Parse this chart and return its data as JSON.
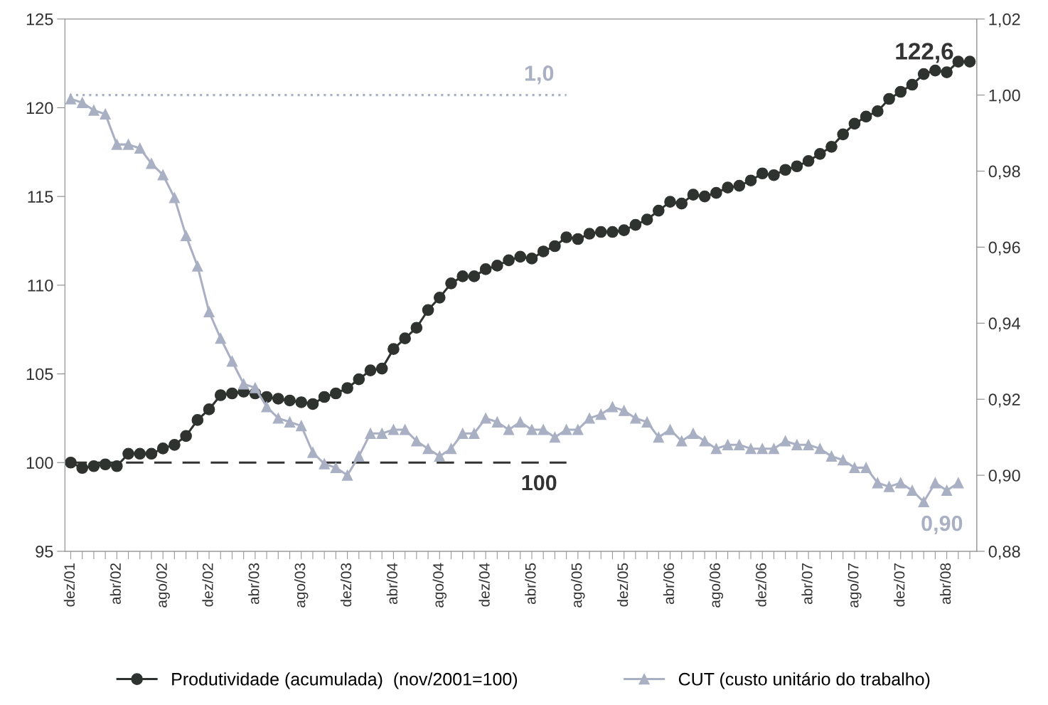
{
  "chart_data": {
    "type": "line",
    "categories": [
      "dez/01",
      null,
      null,
      null,
      "abr/02",
      null,
      null,
      null,
      "ago/02",
      null,
      null,
      null,
      "dez/02",
      null,
      null,
      null,
      "abr/03",
      null,
      null,
      null,
      "ago/03",
      null,
      null,
      null,
      "dez/03",
      null,
      null,
      null,
      "abr/04",
      null,
      null,
      null,
      "ago/04",
      null,
      null,
      null,
      "dez/04",
      null,
      null,
      null,
      "abr/05",
      null,
      null,
      null,
      "ago/05",
      null,
      null,
      null,
      "dez/05",
      null,
      null,
      null,
      "abr/06",
      null,
      null,
      null,
      "ago/06",
      null,
      null,
      null,
      "dez/06",
      null,
      null,
      null,
      "abr/07",
      null,
      null,
      null,
      "ago/07",
      null,
      null,
      null,
      "dez/07",
      null,
      null,
      null,
      "abr/08",
      null,
      null
    ],
    "series": [
      {
        "name": "Produtividade (acumulada)  (nov/2001=100)",
        "color": "#2e332f",
        "marker": "circle",
        "values": [
          100.0,
          99.7,
          99.8,
          99.9,
          99.8,
          100.5,
          100.5,
          100.5,
          100.8,
          101.0,
          101.5,
          102.4,
          103.0,
          103.8,
          103.9,
          104.0,
          103.9,
          103.7,
          103.6,
          103.5,
          103.4,
          103.3,
          103.7,
          103.9,
          104.2,
          104.7,
          105.2,
          105.3,
          106.4,
          107.0,
          107.6,
          108.6,
          109.3,
          110.1,
          110.5,
          110.5,
          110.9,
          111.1,
          111.4,
          111.6,
          111.5,
          111.9,
          112.2,
          112.7,
          112.6,
          112.9,
          113.0,
          113.0,
          113.1,
          113.4,
          113.7,
          114.2,
          114.7,
          114.6,
          115.1,
          115.0,
          115.2,
          115.5,
          115.6,
          115.9,
          116.3,
          116.2,
          116.5,
          116.7,
          117.0,
          117.4,
          117.8,
          118.5,
          119.1,
          119.5,
          119.8,
          120.5,
          120.9,
          121.3,
          121.9,
          122.1,
          122.0,
          122.6,
          122.6
        ]
      },
      {
        "name": "CUT (custo unitário do trabalho)",
        "color": "#a9b0c3",
        "marker": "triangle",
        "axis": "y2",
        "values": [
          0.999,
          0.998,
          0.996,
          0.995,
          0.987,
          0.987,
          0.986,
          0.982,
          0.979,
          0.973,
          0.963,
          0.955,
          0.943,
          0.936,
          0.93,
          0.924,
          0.923,
          0.918,
          0.915,
          0.914,
          0.913,
          0.906,
          0.903,
          0.902,
          0.9,
          0.905,
          0.911,
          0.911,
          0.912,
          0.912,
          0.909,
          0.907,
          0.905,
          0.907,
          0.911,
          0.911,
          0.915,
          0.914,
          0.912,
          0.914,
          0.912,
          0.912,
          0.91,
          0.912,
          0.912,
          0.915,
          0.916,
          0.918,
          0.917,
          0.915,
          0.914,
          0.91,
          0.912,
          0.909,
          0.911,
          0.909,
          0.907,
          0.908,
          0.908,
          0.907,
          0.907,
          0.907,
          0.909,
          0.908,
          0.908,
          0.907,
          0.905,
          0.904,
          0.902,
          0.902,
          0.898,
          0.897,
          0.898,
          0.896,
          0.893,
          0.898,
          0.896,
          0.898,
          null
        ]
      }
    ],
    "ylim": [
      95,
      125
    ],
    "yticks": [
      95,
      100,
      105,
      110,
      115,
      120,
      125
    ],
    "y2lim": [
      0.88,
      1.02
    ],
    "y2ticks": [
      {
        "value": 0.88,
        "label": "0,88"
      },
      {
        "value": 0.9,
        "label": "0,90"
      },
      {
        "value": 0.92,
        "label": "0,92"
      },
      {
        "value": 0.94,
        "label": "0,94"
      },
      {
        "value": 0.96,
        "label": "0,96"
      },
      {
        "value": 0.98,
        "label": "0,98"
      },
      {
        "value": 1.0,
        "label": "1,00"
      },
      {
        "value": 1.02,
        "label": "1,02"
      }
    ],
    "ref_lines": [
      {
        "axis": "y",
        "value": 100,
        "label": "100",
        "color": "#333333",
        "line_style": "dashed"
      },
      {
        "axis": "y2",
        "value": 1.0,
        "label": "1,0",
        "color": "#a9b0c3",
        "line_style": "dotted"
      }
    ],
    "annotations": [
      "122,6",
      "0,90"
    ],
    "grid": false,
    "legend": "bottom"
  }
}
